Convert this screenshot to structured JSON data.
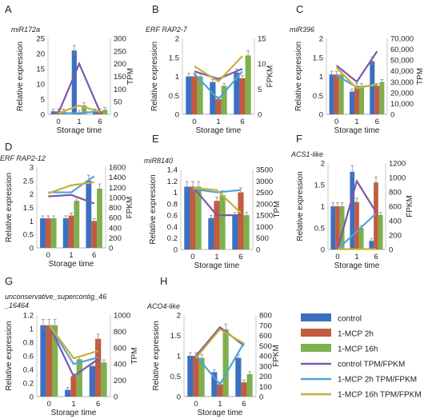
{
  "colors": {
    "control": "#3b6fc0",
    "mcp2": "#c25b3f",
    "mcp16": "#7fb04e",
    "control_line": "#7a5aa8",
    "mcp2_line": "#4fa3d9",
    "mcp16_line": "#c9b035"
  },
  "legend": [
    {
      "label": "control",
      "kind": "bar",
      "color_key": "control"
    },
    {
      "label": "1-MCP 2h",
      "kind": "bar",
      "color_key": "mcp2"
    },
    {
      "label": "1-MCP 16h",
      "kind": "bar",
      "color_key": "mcp16"
    },
    {
      "label": "control TPM/FPKM",
      "kind": "line",
      "color_key": "control_line"
    },
    {
      "label": "1-MCP 2h TPM/FPKM",
      "kind": "line",
      "color_key": "mcp2_line"
    },
    {
      "label": "1-MCP 16h TPM/FPKM",
      "kind": "line",
      "color_key": "mcp16_line"
    }
  ],
  "chart_data": [
    {
      "type": "bar",
      "panel": "A",
      "title": "miR172a",
      "categories": [
        "0",
        "1",
        "6"
      ],
      "xlabel": "Storage time",
      "ylabel": "Relative expression",
      "y2label": "TPM",
      "ylim": [
        0,
        25
      ],
      "yticks": [
        0,
        5,
        10,
        15,
        20,
        25
      ],
      "y2lim": [
        0,
        300
      ],
      "y2ticks": [
        0,
        50,
        100,
        150,
        200,
        250,
        300
      ],
      "bars": [
        [
          1,
          1,
          1
        ],
        [
          21,
          0.5,
          3
        ],
        [
          1,
          1,
          1.5
        ]
      ],
      "lines": [
        [
          5,
          200,
          10
        ],
        [
          5,
          5,
          12
        ],
        [
          5,
          35,
          10
        ]
      ]
    },
    {
      "type": "bar",
      "panel": "B",
      "title": "ERF RAP2-7",
      "categories": [
        "0",
        "1",
        "6"
      ],
      "xlabel": "Storage time",
      "ylabel": "Relative expression",
      "y2label": "FPKM",
      "ylim": [
        0,
        2
      ],
      "yticks": [
        0,
        0.5,
        1,
        1.5,
        2
      ],
      "y2lim": [
        0,
        15
      ],
      "y2ticks": [
        0,
        5,
        10,
        15
      ],
      "bars": [
        [
          1,
          1,
          1
        ],
        [
          0.85,
          0.4,
          0.75
        ],
        [
          1.1,
          0.95,
          1.55
        ]
      ],
      "lines": [
        [
          8.5,
          7,
          9
        ],
        [
          8,
          3,
          8.5
        ],
        [
          9.5,
          6.5,
          11.5
        ]
      ]
    },
    {
      "type": "bar",
      "panel": "C",
      "title": "miR396",
      "categories": [
        "0",
        "1",
        "6"
      ],
      "xlabel": "Storage time",
      "ylabel": "Relative expression",
      "y2label": "TPM",
      "ylim": [
        0,
        2
      ],
      "yticks": [
        0,
        0.5,
        1,
        1.5,
        2
      ],
      "y2lim": [
        0,
        70000
      ],
      "y2ticks": [
        0,
        10000,
        20000,
        30000,
        40000,
        50000,
        60000,
        70000
      ],
      "bars": [
        [
          1.05,
          1.05,
          1.05
        ],
        [
          0.6,
          0.75,
          0.75
        ],
        [
          1.4,
          0.75,
          0.85
        ]
      ],
      "lines": [
        [
          45000,
          30000,
          58000
        ],
        [
          36000,
          25000,
          27000
        ],
        [
          43000,
          24000,
          28000
        ]
      ]
    },
    {
      "type": "bar",
      "panel": "D",
      "title": "ERF RAP2-12",
      "categories": [
        "0",
        "1",
        "6"
      ],
      "xlabel": "Storage time",
      "ylabel": "Relative expression",
      "y2label": "FPKM",
      "ylim": [
        0,
        3
      ],
      "yticks": [
        0,
        0.5,
        1,
        1.5,
        2,
        2.5,
        3
      ],
      "y2lim": [
        0,
        1600
      ],
      "y2ticks": [
        0,
        200,
        400,
        600,
        800,
        1000,
        1200,
        1400,
        1600
      ],
      "bars": [
        [
          1.1,
          1.1,
          1.1
        ],
        [
          1.1,
          1.2,
          1.75
        ],
        [
          2.5,
          1.0,
          2.2
        ]
      ],
      "lines": [
        [
          1020,
          1050,
          880
        ],
        [
          1100,
          1100,
          1420
        ],
        [
          1080,
          1240,
          1300
        ]
      ]
    },
    {
      "type": "bar",
      "panel": "E",
      "title": "miR8140",
      "categories": [
        "0",
        "1",
        "6"
      ],
      "xlabel": "Storage time",
      "ylabel": "Relative expression",
      "y2label": "TPM",
      "ylim": [
        0,
        1.4
      ],
      "yticks": [
        0,
        0.2,
        0.4,
        0.6,
        0.8,
        1,
        1.2,
        1.4
      ],
      "y2lim": [
        0,
        3500
      ],
      "y2ticks": [
        0,
        500,
        1000,
        1500,
        2000,
        2500,
        3000,
        3500
      ],
      "bars": [
        [
          1.1,
          1.1,
          1.1
        ],
        [
          0.55,
          0.85,
          0.95
        ],
        [
          0.6,
          1.0,
          0.6
        ]
      ],
      "lines": [
        [
          2750,
          1500,
          1500
        ],
        [
          2650,
          2500,
          2600
        ],
        [
          2700,
          2600,
          1600
        ]
      ]
    },
    {
      "type": "bar",
      "panel": "F",
      "title": "ACS1-like",
      "categories": [
        "0",
        "1",
        "6"
      ],
      "xlabel": "Storage time",
      "ylabel": "Relative expression",
      "y2label": "FPKM",
      "ylim": [
        0,
        2
      ],
      "yticks": [
        0,
        0.5,
        1,
        1.5,
        2
      ],
      "y2lim": [
        0,
        1200
      ],
      "y2ticks": [
        0,
        200,
        400,
        600,
        800,
        1000,
        1200
      ],
      "bars": [
        [
          1,
          1,
          1
        ],
        [
          1.8,
          1.1,
          0.5
        ],
        [
          0.2,
          1.55,
          0.8
        ]
      ],
      "lines": [
        [
          5,
          950,
          520
        ],
        [
          5,
          250,
          500
        ],
        [
          5,
          5,
          5
        ]
      ]
    },
    {
      "type": "bar",
      "panel": "G",
      "title": "unconservative_supercontig_46_16464",
      "categories": [
        "0",
        "1",
        "6"
      ],
      "xlabel": "Storage time",
      "ylabel": "Relative expression",
      "y2label": "TPM",
      "ylim": [
        0,
        1.2
      ],
      "yticks": [
        0,
        0.2,
        0.4,
        0.6,
        0.8,
        1,
        1.2
      ],
      "y2lim": [
        0,
        1000
      ],
      "y2ticks": [
        0,
        200,
        400,
        600,
        800,
        1000
      ],
      "bars": [
        [
          1.05,
          1.05,
          1.05
        ],
        [
          0.1,
          0.3,
          0.55
        ],
        [
          0.45,
          0.85,
          0.5
        ]
      ],
      "lines": [
        [
          880,
          250,
          460
        ],
        [
          880,
          400,
          480
        ],
        [
          880,
          470,
          560
        ]
      ]
    },
    {
      "type": "bar",
      "panel": "H",
      "title": "ACO4-like",
      "categories": [
        "0",
        "1",
        "6"
      ],
      "xlabel": "Storage time",
      "ylabel": "Relative expression",
      "y2label": "FPKM",
      "ylim": [
        0,
        2
      ],
      "yticks": [
        0,
        0.5,
        1,
        1.5,
        2
      ],
      "y2lim": [
        0,
        800
      ],
      "y2ticks": [
        0,
        100,
        200,
        300,
        400,
        500,
        600,
        700,
        800
      ],
      "bars": [
        [
          1.0,
          1.0,
          0.95
        ],
        [
          0.6,
          0.3,
          1.65
        ],
        [
          0.95,
          0.35,
          0.55
        ]
      ],
      "lines": [
        [
          400,
          680,
          500
        ],
        [
          400,
          120,
          530
        ],
        [
          380,
          660,
          520
        ]
      ]
    }
  ]
}
